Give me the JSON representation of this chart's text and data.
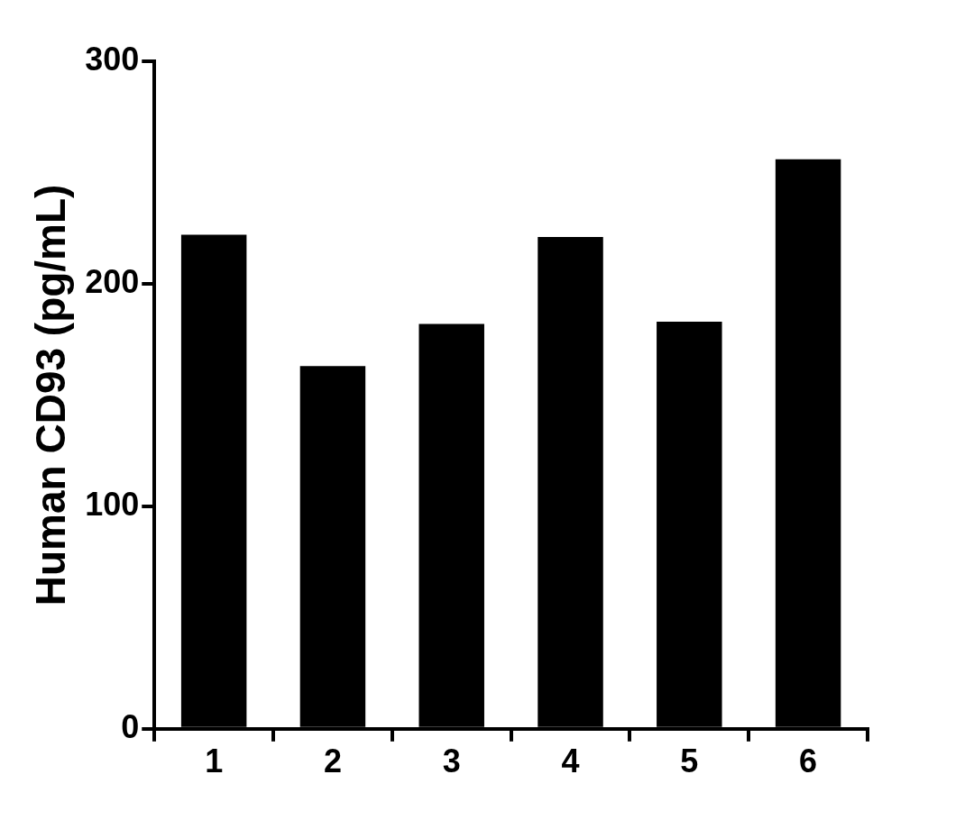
{
  "chart_data": {
    "type": "bar",
    "ylabel": "Human CD93 (pg/mL)",
    "categories": [
      "1",
      "2",
      "3",
      "4",
      "5",
      "6"
    ],
    "values": [
      222,
      163,
      182,
      221,
      183,
      256
    ],
    "color": "#000000",
    "ylim": [
      0,
      300
    ],
    "yticks": [
      0,
      100,
      200,
      300
    ],
    "grid": false,
    "legend": false
  }
}
